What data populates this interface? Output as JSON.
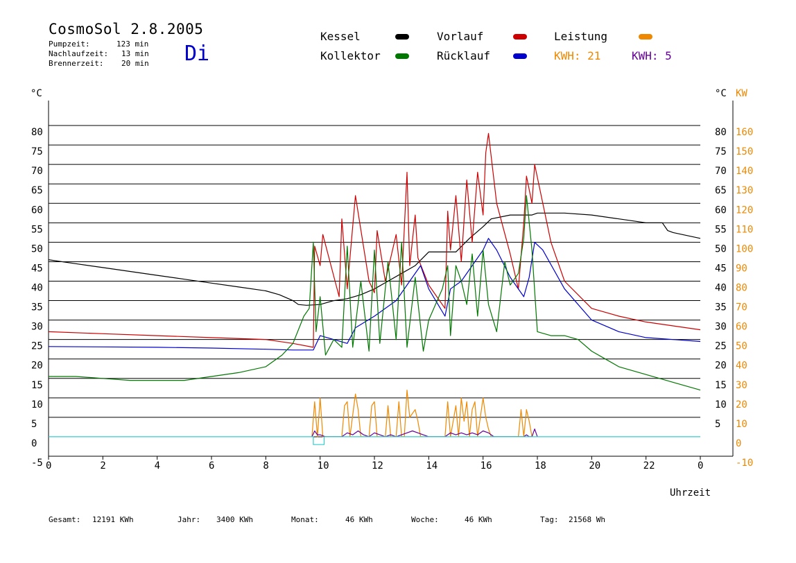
{
  "header": {
    "title": "CosmoSol 2.8.2005",
    "day": "Di",
    "pump_label": "Pumpzeit:",
    "pump_value": "123 min",
    "nachlauf_label": "Nachlaufzeit:",
    "nachlauf_value": "13 min",
    "brenner_label": "Brennerzeit:",
    "brenner_value": "20 min"
  },
  "legend": {
    "kessel": "Kessel",
    "kollektor": "Kollektor",
    "vorlauf": "Vorlauf",
    "ruecklauf": "Rücklauf",
    "leistung": "Leistung",
    "kwh1": "KWH: 21",
    "kwh2": "KWH: 5"
  },
  "footer": {
    "gesamt_label": "Gesamt:",
    "gesamt_value": "12191 KWh",
    "jahr_label": "Jahr:",
    "jahr_value": "3400 KWh",
    "monat_label": "Monat:",
    "monat_value": "46 KWh",
    "woche_label": "Woche:",
    "woche_value": "46 KWh",
    "tag_label": "Tag:",
    "tag_value": "21568 Wh"
  },
  "colors": {
    "kessel": "#000000",
    "kollektor": "#007700",
    "vorlauf": "#cc0000",
    "ruecklauf": "#0000cc",
    "leistung": "#ee8800",
    "kwh2": "#660099",
    "zero": "#33cccc"
  },
  "chart_data": {
    "type": "line",
    "title": "",
    "xlabel": "Uhrzeit",
    "ylabel_left": "°C",
    "ylabel_right_temp": "°C",
    "ylabel_right_power": "KW",
    "xlim": [
      0,
      24
    ],
    "ylim": [
      -5,
      85
    ],
    "power_lim": [
      -10,
      170
    ],
    "x_ticks": [
      "0",
      "2",
      "4",
      "6",
      "8",
      "10",
      "12",
      "14",
      "16",
      "18",
      "20",
      "22",
      "0"
    ],
    "y_ticks_left": [
      "-5",
      "0",
      "5",
      "10",
      "15",
      "20",
      "25",
      "30",
      "35",
      "40",
      "45",
      "50",
      "55",
      "60",
      "65",
      "70",
      "75",
      "80"
    ],
    "y_ticks_right_temp": [
      "5",
      "10",
      "15",
      "20",
      "25",
      "30",
      "35",
      "40",
      "45",
      "50",
      "55",
      "60",
      "65",
      "70",
      "75",
      "80"
    ],
    "y_ticks_right_power": [
      "-10",
      "0",
      "10",
      "20",
      "30",
      "40",
      "50",
      "60",
      "70",
      "80",
      "90",
      "100",
      "110",
      "120",
      "130",
      "140",
      "150",
      "160"
    ],
    "grid": true,
    "series": [
      {
        "name": "Kessel",
        "color": "#000000",
        "x": [
          0,
          1,
          2,
          3,
          4,
          5,
          6,
          7,
          8,
          8.5,
          9,
          9.2,
          9.5,
          10,
          10.5,
          11,
          11.5,
          12,
          12.5,
          13,
          13.5,
          14,
          14.5,
          15,
          15.5,
          16,
          16.3,
          17,
          17.5,
          17.8,
          18,
          19,
          20,
          21,
          22,
          22.6,
          22.8,
          23,
          24
        ],
        "y": [
          45.5,
          44.5,
          43.5,
          42.5,
          41.5,
          40.5,
          39.5,
          38.5,
          37.5,
          36.5,
          35,
          34,
          33.8,
          34,
          35,
          35.5,
          36.5,
          38,
          40,
          42,
          44,
          47.5,
          47.5,
          47.5,
          51,
          54,
          56,
          57,
          57,
          57,
          57.5,
          57.5,
          57,
          56,
          55,
          55,
          53,
          52.5,
          51
        ]
      },
      {
        "name": "Vorlauf",
        "color": "#cc0000",
        "x": [
          0,
          2,
          4,
          6,
          8,
          9,
          9.75,
          9.8,
          10,
          10.1,
          10.7,
          10.8,
          11,
          11.3,
          11.8,
          12,
          12.1,
          12.4,
          12.8,
          13,
          13.2,
          13.3,
          13.5,
          13.6,
          14,
          14.6,
          14.7,
          14.8,
          15,
          15.2,
          15.4,
          15.6,
          15.8,
          16,
          16.1,
          16.2,
          16.5,
          17,
          17.3,
          17.5,
          17.6,
          17.8,
          17.9,
          18.5,
          19,
          20,
          21,
          22,
          23,
          24
        ],
        "y": [
          27,
          26.5,
          26,
          25.5,
          25,
          24,
          23,
          49,
          44,
          52,
          36,
          56,
          38,
          62,
          40,
          37,
          53,
          40,
          52,
          39,
          68,
          44,
          57,
          46,
          39,
          33,
          58,
          48,
          62,
          45,
          66,
          50,
          68,
          57,
          73,
          78,
          60,
          47,
          38,
          55,
          67,
          60,
          70,
          50,
          40,
          33,
          31,
          29.5,
          28.5,
          27.5
        ]
      },
      {
        "name": "Rücklauf",
        "color": "#0000cc",
        "x": [
          0,
          2,
          4,
          6,
          8,
          9,
          9.75,
          10,
          10.5,
          11,
          11.3,
          12,
          12.4,
          12.8,
          13.3,
          13.7,
          14,
          14.6,
          14.8,
          15.2,
          15.6,
          16,
          16.2,
          16.5,
          17,
          17.5,
          17.7,
          17.9,
          18.2,
          19,
          20,
          21,
          22,
          23,
          24
        ],
        "y": [
          23.2,
          23.1,
          23,
          22.8,
          22.5,
          22.3,
          22.3,
          26,
          25,
          24,
          28,
          31,
          33,
          35,
          40,
          44,
          38,
          31,
          38,
          40,
          44,
          48,
          51,
          48,
          41,
          36,
          41,
          50,
          48,
          38,
          30,
          27,
          25.5,
          25,
          24.5
        ]
      },
      {
        "name": "Kollektor",
        "color": "#007700",
        "x": [
          0,
          1,
          2,
          3,
          4,
          5,
          6,
          7,
          8,
          8.6,
          9,
          9.4,
          9.6,
          9.75,
          9.85,
          10,
          10.2,
          10.5,
          10.8,
          11,
          11.2,
          11.5,
          11.8,
          12,
          12.2,
          12.5,
          12.8,
          13,
          13.2,
          13.5,
          13.8,
          14,
          14.5,
          14.7,
          14.8,
          15,
          15.2,
          15.4,
          15.6,
          15.8,
          16,
          16.2,
          16.5,
          16.8,
          17,
          17.3,
          17.5,
          17.6,
          17.8,
          18,
          18.5,
          19,
          19.5,
          20,
          20.5,
          21,
          22,
          23,
          24
        ],
        "y": [
          15.5,
          15.5,
          15,
          14.5,
          14.5,
          14.5,
          15.5,
          16.5,
          18,
          21,
          24,
          31,
          33,
          50,
          27,
          36,
          21,
          25,
          23,
          49,
          23,
          40,
          22,
          48,
          24,
          45,
          25,
          50,
          23,
          41,
          22,
          30,
          38,
          44,
          26,
          44,
          40,
          34,
          47,
          31,
          48,
          34,
          27,
          45,
          39,
          42,
          51,
          62,
          48,
          27,
          26,
          26,
          25,
          22,
          20,
          18,
          16,
          14,
          12
        ]
      },
      {
        "name": "Leistung",
        "color": "#ee8800",
        "x": [
          9.7,
          9.8,
          9.9,
          10,
          10.1,
          10.2,
          10.8,
          10.9,
          11,
          11.1,
          11.3,
          11.4,
          11.5,
          11.6,
          11.8,
          11.9,
          12,
          12.1,
          12.2,
          12.4,
          12.5,
          12.6,
          12.8,
          12.9,
          13,
          13.1,
          13.2,
          13.3,
          13.5,
          13.6,
          13.7,
          14.6,
          14.7,
          14.8,
          15,
          15.1,
          15.2,
          15.3,
          15.4,
          15.5,
          15.6,
          15.7,
          15.8,
          16,
          16.1,
          16.2,
          16.3,
          16.4,
          17.3,
          17.4,
          17.5,
          17.6,
          17.7,
          17.8
        ],
        "y": [
          0,
          18,
          0,
          20,
          0,
          0,
          0,
          16,
          18,
          0,
          22,
          14,
          0,
          0,
          0,
          16,
          18,
          0,
          0,
          0,
          16,
          0,
          0,
          18,
          0,
          0,
          24,
          10,
          14,
          8,
          0,
          0,
          18,
          0,
          16,
          0,
          20,
          8,
          18,
          0,
          14,
          18,
          0,
          20,
          10,
          4,
          0,
          0,
          0,
          14,
          0,
          14,
          8,
          0
        ],
        "axis": "power"
      },
      {
        "name": "KWH: 5",
        "color": "#660099",
        "x": [
          9.7,
          9.8,
          9.9,
          10,
          10.2,
          10.8,
          11,
          11.2,
          11.4,
          11.6,
          11.8,
          12,
          12.2,
          12.4,
          12.6,
          12.8,
          13,
          13.2,
          13.4,
          13.6,
          14,
          14.6,
          14.8,
          15,
          15.2,
          15.4,
          15.6,
          15.8,
          16,
          16.2,
          16.4,
          17.5,
          17.6,
          17.7,
          17.8,
          17.9,
          18
        ],
        "y": [
          0,
          3,
          1,
          1,
          0,
          0,
          2,
          1,
          3,
          1,
          0,
          2,
          1,
          0,
          1,
          0,
          1,
          2,
          3,
          2,
          0,
          0,
          2,
          1,
          2,
          1,
          2,
          1,
          3,
          2,
          0,
          0,
          1,
          0,
          0,
          4,
          0
        ],
        "axis": "power"
      },
      {
        "name": "Nulllinie",
        "color": "#33cccc",
        "x": [
          0,
          9.75,
          9.75,
          10.15,
          10.15,
          24
        ],
        "y": [
          0,
          0,
          -2,
          -2,
          0,
          0
        ]
      }
    ]
  }
}
